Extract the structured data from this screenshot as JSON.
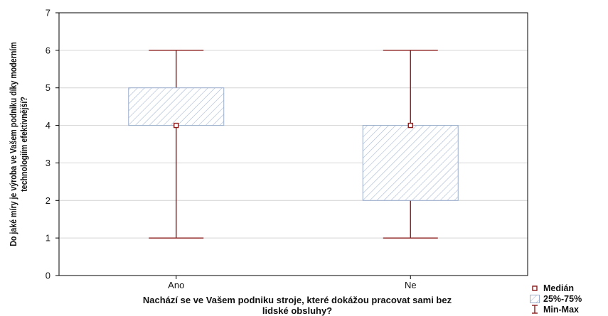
{
  "chart_data": {
    "type": "box",
    "title": "",
    "xlabel": "Nachází se ve Vašem podniku stroje, které dokážou pracovat sami bez lidské obsluhy?",
    "ylabel": "Do jaké míry je výroba ve Vašem podniku díky moderním technologiím efektivnější?",
    "categories": [
      "Ano",
      "Ne"
    ],
    "ylim": [
      0,
      7
    ],
    "yticks": [
      "0",
      "1",
      "2",
      "3",
      "4",
      "5",
      "6",
      "7"
    ],
    "grid": true,
    "series": [
      {
        "category": "Ano",
        "min": 1,
        "q1": 4,
        "median": 4,
        "q3": 5,
        "max": 6
      },
      {
        "category": "Ne",
        "min": 1,
        "q1": 2,
        "median": 4,
        "q3": 4,
        "max": 6
      }
    ],
    "legend": {
      "position": "bottom-right",
      "items": [
        "Medián",
        "25%-75%",
        "Min-Max"
      ]
    },
    "colors": {
      "whisker": "#8b1a1a",
      "box_edge": "#9aaecb",
      "hatch": "#a9b9d3",
      "grid": "#d4d4d4"
    }
  }
}
